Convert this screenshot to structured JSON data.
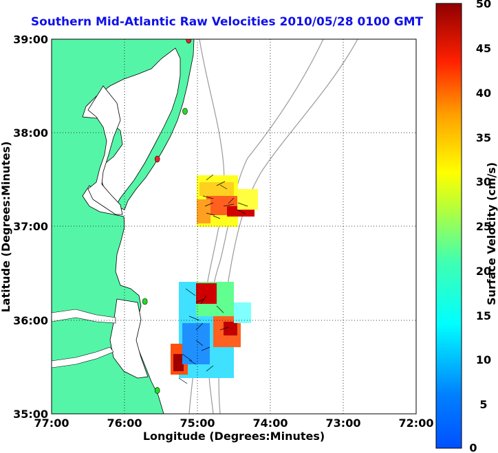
{
  "title": "Southern Mid-Atlantic Raw Velocities 2010/05/28 0100 GMT",
  "x_axis": {
    "label": "Longitude (Degrees:Minutes)",
    "ticks": [
      "77:00",
      "76:00",
      "75:00",
      "74:00",
      "73:00",
      "72:00"
    ]
  },
  "y_axis": {
    "label": "Latitude (Degrees:Minutes)",
    "ticks": [
      "39:00",
      "38:00",
      "37:00",
      "36:00",
      "35:00"
    ]
  },
  "colorbar": {
    "label": "Surface Velocity (cm/s)",
    "ticks": [
      "50",
      "45",
      "40",
      "35",
      "30",
      "25",
      "20",
      "15",
      "10",
      "5",
      "0"
    ],
    "colormap": "jet",
    "range": [
      0,
      50
    ]
  },
  "colors": {
    "land": "#55f5a8",
    "ocean": "#ffffff",
    "title": "#1010e8",
    "bathymetry": "#999999",
    "coastline": "#000000",
    "station_green": "#22dd22",
    "station_red": "#ee2222"
  },
  "map_extent": {
    "lon": [
      -77,
      -72
    ],
    "lat": [
      35,
      39
    ]
  },
  "grid": true,
  "stations": [
    {
      "lon": -75.12,
      "lat": 38.99,
      "status": "red"
    },
    {
      "lon": -75.17,
      "lat": 38.23,
      "status": "green"
    },
    {
      "lon": -75.55,
      "lat": 37.72,
      "status": "red"
    },
    {
      "lon": -75.72,
      "lat": 36.2,
      "status": "green"
    },
    {
      "lon": -75.55,
      "lat": 35.25,
      "status": "green"
    }
  ]
}
